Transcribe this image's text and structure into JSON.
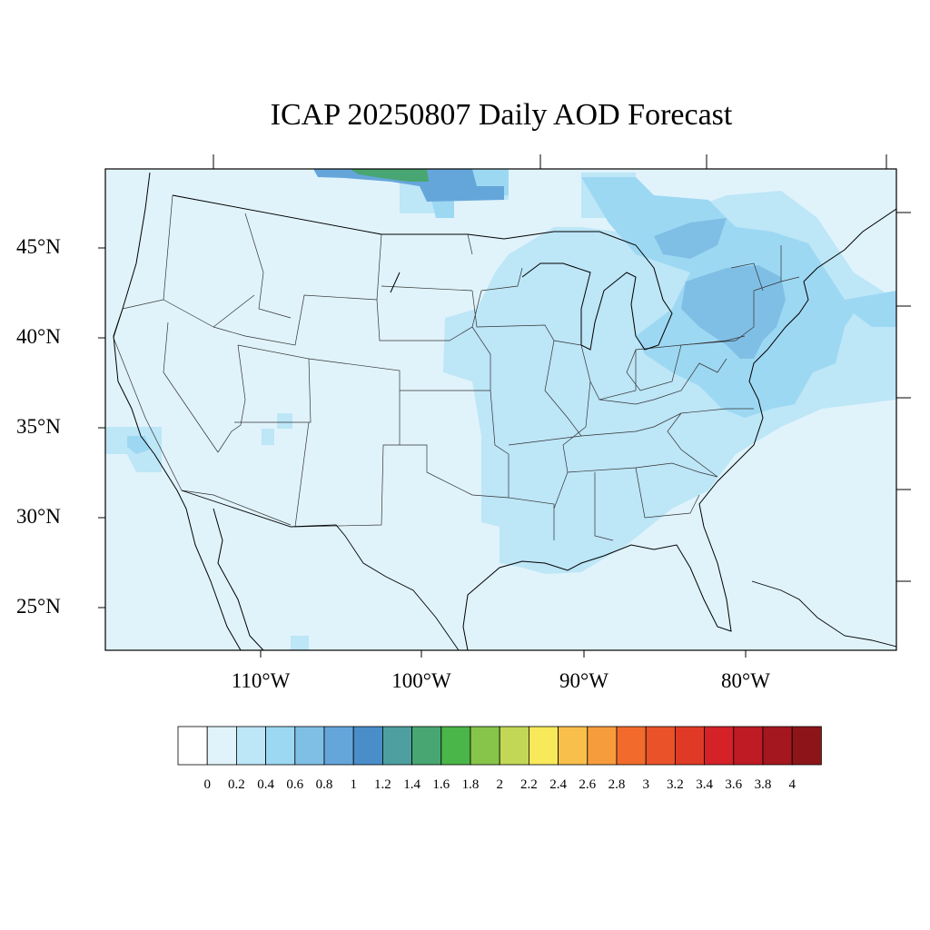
{
  "title": "ICAP 20250807 Daily AOD Forecast",
  "map": {
    "region": "Contiguous United States",
    "lat_labels": [
      "45°N",
      "40°N",
      "35°N",
      "30°N",
      "25°N"
    ],
    "lon_labels": [
      "110°W",
      "100°W",
      "90°W",
      "80°W"
    ],
    "background_value": 0.1
  },
  "colorbar": {
    "labels": [
      "0",
      "0.2",
      "0.4",
      "0.6",
      "0.8",
      "1",
      "1.2",
      "1.4",
      "1.6",
      "1.8",
      "2",
      "2.2",
      "2.4",
      "2.6",
      "2.8",
      "3",
      "3.2",
      "3.4",
      "3.6",
      "3.8",
      "4"
    ],
    "colors": [
      "#ffffff",
      "#e0f3fb",
      "#bde6f7",
      "#9dd8f3",
      "#80bfe5",
      "#65a6da",
      "#4a8ec9",
      "#4e9f9f",
      "#48a672",
      "#4ab548",
      "#86c54a",
      "#c3d757",
      "#f7e95a",
      "#f8bf4a",
      "#f79c3c",
      "#f26b2c",
      "#ea5229",
      "#e03a27",
      "#d52128",
      "#be1b24",
      "#a5171e",
      "#8d1519"
    ]
  },
  "aod_regions": [
    {
      "area": "upper-midwest-plume",
      "level": 0.3
    },
    {
      "area": "northeast-plume",
      "level": 0.5
    },
    {
      "area": "new-york-pennsylvania",
      "level": 0.7
    },
    {
      "area": "southern-canada-plume",
      "level": 0.9
    },
    {
      "area": "canada-peak",
      "level": 1.5
    },
    {
      "area": "southern-california-coast",
      "level": 0.4
    }
  ]
}
